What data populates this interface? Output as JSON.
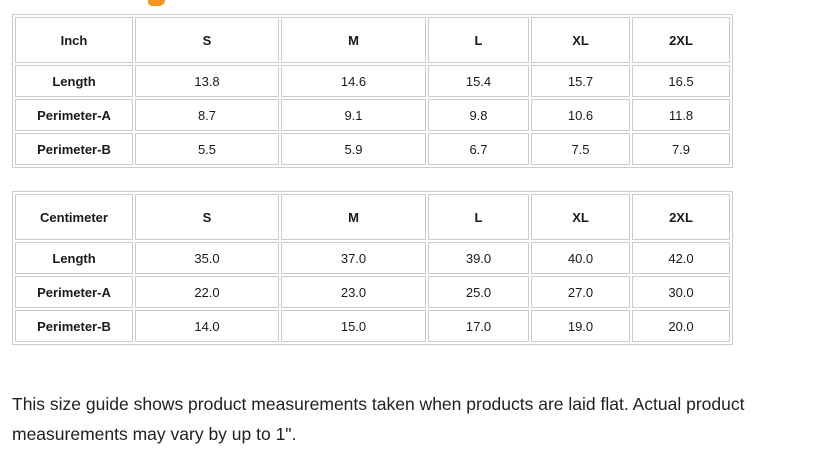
{
  "colors": {
    "accent": "#f7941e",
    "table_border": "#cccccc",
    "table_text": "#1a1a1a",
    "note_text": "#212121"
  },
  "tables": [
    {
      "unit_label": "Inch",
      "columns": [
        "S",
        "M",
        "L",
        "XL",
        "2XL"
      ],
      "rows": [
        {
          "label": "Length",
          "values": [
            "13.8",
            "14.6",
            "15.4",
            "15.7",
            "16.5"
          ]
        },
        {
          "label": "Perimeter-A",
          "values": [
            "8.7",
            "9.1",
            "9.8",
            "10.6",
            "11.8"
          ]
        },
        {
          "label": "Perimeter-B",
          "values": [
            "5.5",
            "5.9",
            "6.7",
            "7.5",
            "7.9"
          ]
        }
      ]
    },
    {
      "unit_label": "Centimeter",
      "columns": [
        "S",
        "M",
        "L",
        "XL",
        "2XL"
      ],
      "rows": [
        {
          "label": "Length",
          "values": [
            "35.0",
            "37.0",
            "39.0",
            "40.0",
            "42.0"
          ]
        },
        {
          "label": "Perimeter-A",
          "values": [
            "22.0",
            "23.0",
            "25.0",
            "27.0",
            "30.0"
          ]
        },
        {
          "label": "Perimeter-B",
          "values": [
            "14.0",
            "15.0",
            "17.0",
            "19.0",
            "20.0"
          ]
        }
      ]
    }
  ],
  "note": "This size guide shows product measurements taken when products are laid flat. Actual product measurements may vary by up to 1\"."
}
